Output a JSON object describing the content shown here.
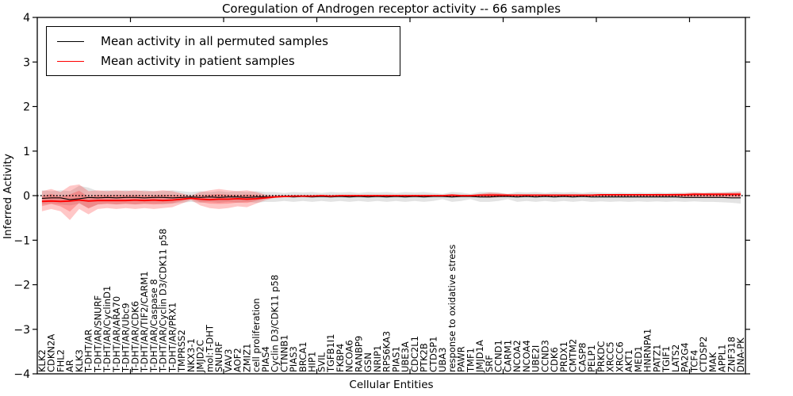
{
  "figure": {
    "title": "Coregulation of Androgen receptor activity -- 66 samples",
    "xlabel": "Cellular Entities",
    "ylabel": "Inferred Activity"
  },
  "legend": {
    "items": [
      {
        "label": "Mean activity in all permuted samples",
        "color": "#000000"
      },
      {
        "label": "Mean activity in patient samples",
        "color": "#ff0000"
      }
    ]
  },
  "chart_data": {
    "type": "line",
    "title": "Coregulation of Androgen receptor activity -- 66 samples",
    "xlabel": "Cellular Entities",
    "ylabel": "Inferred Activity",
    "ylim": [
      -4,
      4
    ],
    "yticks": [
      -4,
      -3,
      -2,
      -1,
      0,
      1,
      2,
      3,
      4
    ],
    "ytick_labels": [
      "−4",
      "−3",
      "−2",
      "−1",
      "0",
      "1",
      "2",
      "3",
      "4"
    ],
    "xticks_major": [
      10,
      20,
      30,
      40,
      50,
      60,
      70
    ],
    "grid": false,
    "legend_position": "upper left",
    "reference_line": {
      "name": "zero-reference-line",
      "value": 0,
      "style": "dotted",
      "color": "#000000"
    },
    "categories": [
      "KLK2",
      "CDKN2A",
      "FHL2",
      "AR",
      "KLK3",
      "T-DHT/AR",
      "T-DHT/AR/SNURF",
      "T-DHT/AR/CyclinD1",
      "T-DHT/AR/ARA70",
      "T-DHT/AR/Ubc9",
      "T-DHT/AR/CDK6",
      "T-DHT/AR/TIF2/CARM1",
      "T-DHT/AR/Caspase 8",
      "T-DHT/AR/Cyclin D3/CDK11 p58",
      "T-DHT/AR/PRX1",
      "TMPRSS2",
      "NKX3-1",
      "JMJD2C",
      "mol:T-DHT",
      "SNURF",
      "VAV3",
      "AOF2",
      "ZMIZ1",
      "cell proliferation",
      "PIAS4",
      "Cyclin D3/CDK11 p58",
      "CTNNB1",
      "PIAS3",
      "BRCA1",
      "HIP1",
      "SVIL",
      "TGFB1I1",
      "FKBP4",
      "NCOA6",
      "RANBP9",
      "GSN",
      "NRIP1",
      "RPS6KA3",
      "PIAS1",
      "UBE3A",
      "CDC2L1",
      "PTK2B",
      "CTDSP1",
      "UBA3",
      "response to oxidative stress",
      "PAWR",
      "TMF1",
      "JMJD1A",
      "SRF",
      "CCND1",
      "CARM1",
      "NCOA2",
      "NCOA4",
      "UBE2I",
      "CCND3",
      "CDK6",
      "PRDX1",
      "CMTM2",
      "CASP8",
      "PELP1",
      "PRKDC",
      "XRCC5",
      "XRCC6",
      "AKT1",
      "MED1",
      "HNRNPA1",
      "PATZ1",
      "TGIF1",
      "LATS2",
      "PA2G4",
      "TCF4",
      "CTDSP2",
      "MAK",
      "APPL1",
      "ZNF318",
      "DNA-PK"
    ],
    "series": [
      {
        "name": "Mean activity in all permuted samples",
        "color": "#000000",
        "width": 1.1,
        "values": [
          -0.06,
          -0.05,
          -0.05,
          -0.09,
          -0.07,
          -0.04,
          -0.05,
          -0.04,
          -0.05,
          -0.04,
          -0.04,
          -0.05,
          -0.04,
          -0.04,
          -0.05,
          -0.04,
          -0.03,
          -0.04,
          -0.03,
          -0.04,
          -0.03,
          -0.03,
          -0.04,
          -0.03,
          -0.03,
          -0.03,
          -0.02,
          -0.03,
          -0.02,
          -0.03,
          -0.02,
          -0.03,
          -0.02,
          -0.03,
          -0.02,
          -0.03,
          -0.02,
          -0.03,
          -0.02,
          -0.03,
          -0.02,
          -0.03,
          -0.02,
          -0.02,
          -0.03,
          -0.02,
          -0.02,
          -0.03,
          -0.03,
          -0.02,
          -0.02,
          -0.03,
          -0.02,
          -0.03,
          -0.02,
          -0.03,
          -0.02,
          -0.03,
          -0.02,
          -0.03,
          -0.03,
          -0.03,
          -0.03,
          -0.03,
          -0.03,
          -0.03,
          -0.03,
          -0.03,
          -0.03,
          -0.04,
          -0.04,
          -0.04,
          -0.04,
          -0.04,
          -0.05,
          -0.05
        ]
      },
      {
        "name": "Mean activity in patient samples",
        "color": "#ff0000",
        "width": 1.8,
        "values": [
          -0.13,
          -0.12,
          -0.13,
          -0.12,
          -0.1,
          -0.12,
          -0.11,
          -0.11,
          -0.11,
          -0.11,
          -0.1,
          -0.11,
          -0.1,
          -0.11,
          -0.1,
          -0.08,
          -0.06,
          -0.08,
          -0.09,
          -0.08,
          -0.08,
          -0.07,
          -0.08,
          -0.07,
          -0.05,
          -0.03,
          -0.02,
          -0.01,
          -0.01,
          -0.01,
          0.0,
          -0.01,
          0.0,
          0.0,
          0.0,
          0.0,
          0.0,
          0.0,
          0.0,
          0.0,
          0.0,
          0.0,
          0.0,
          0.0,
          0.01,
          0.0,
          0.0,
          0.01,
          0.01,
          0.01,
          0.01,
          0.01,
          0.01,
          0.01,
          0.01,
          0.01,
          0.01,
          0.01,
          0.01,
          0.01,
          0.02,
          0.02,
          0.02,
          0.02,
          0.02,
          0.02,
          0.02,
          0.02,
          0.02,
          0.02,
          0.03,
          0.03,
          0.03,
          0.03,
          0.03,
          0.03
        ]
      }
    ],
    "bands": [
      {
        "name": "permuted-samples-band",
        "color": "rgba(0,0,0,0.11)",
        "core": false,
        "upper": [
          0.12,
          0.1,
          0.12,
          0.1,
          0.22,
          0.18,
          0.1,
          0.12,
          0.1,
          0.12,
          0.1,
          0.12,
          0.1,
          0.1,
          0.12,
          0.1,
          0.08,
          0.1,
          0.08,
          0.1,
          0.08,
          0.1,
          0.08,
          0.1,
          0.08,
          0.08,
          0.06,
          0.08,
          0.07,
          0.08,
          0.06,
          0.08,
          0.07,
          0.08,
          0.06,
          0.08,
          0.07,
          0.08,
          0.06,
          0.08,
          0.07,
          0.08,
          0.06,
          0.04,
          0.08,
          0.07,
          0.04,
          0.08,
          0.08,
          0.07,
          0.04,
          0.08,
          0.07,
          0.08,
          0.06,
          0.08,
          0.07,
          0.08,
          0.06,
          0.08,
          0.07,
          0.06,
          0.07,
          0.06,
          0.07,
          0.06,
          0.07,
          0.06,
          0.07,
          0.06,
          0.07,
          0.06,
          0.08,
          0.07,
          0.09,
          0.1
        ],
        "lower": [
          -0.2,
          -0.18,
          -0.2,
          -0.22,
          -0.18,
          -0.28,
          -0.2,
          -0.18,
          -0.2,
          -0.18,
          -0.2,
          -0.18,
          -0.18,
          -0.2,
          -0.18,
          -0.16,
          -0.14,
          -0.16,
          -0.14,
          -0.16,
          -0.14,
          -0.16,
          -0.14,
          -0.16,
          -0.14,
          -0.14,
          -0.12,
          -0.14,
          -0.12,
          -0.14,
          -0.12,
          -0.14,
          -0.12,
          -0.14,
          -0.12,
          -0.14,
          -0.12,
          -0.14,
          -0.12,
          -0.14,
          -0.12,
          -0.14,
          -0.12,
          -0.08,
          -0.14,
          -0.12,
          -0.08,
          -0.14,
          -0.14,
          -0.12,
          -0.08,
          -0.14,
          -0.12,
          -0.14,
          -0.12,
          -0.14,
          -0.12,
          -0.14,
          -0.12,
          -0.14,
          -0.13,
          -0.14,
          -0.13,
          -0.14,
          -0.13,
          -0.14,
          -0.13,
          -0.14,
          -0.13,
          -0.14,
          -0.13,
          -0.14,
          -0.14,
          -0.15,
          -0.16,
          -0.18
        ]
      },
      {
        "name": "patient-samples-band",
        "color": "rgba(255,0,0,0.22)",
        "core": true,
        "upper": [
          0.1,
          0.15,
          0.08,
          0.22,
          0.25,
          0.1,
          0.12,
          0.1,
          0.12,
          0.1,
          0.12,
          0.1,
          0.1,
          0.12,
          0.1,
          0.05,
          0.0,
          0.08,
          0.12,
          0.15,
          0.12,
          0.1,
          0.12,
          0.08,
          0.02,
          0.01,
          0.01,
          0.01,
          0.01,
          0.01,
          0.01,
          0.01,
          0.01,
          0.01,
          0.01,
          0.01,
          0.01,
          0.01,
          0.01,
          0.01,
          0.01,
          0.01,
          0.01,
          0.01,
          0.03,
          0.02,
          0.02,
          0.04,
          0.07,
          0.06,
          0.03,
          0.02,
          0.02,
          0.02,
          0.02,
          0.02,
          0.02,
          0.02,
          0.02,
          0.02,
          0.03,
          0.03,
          0.03,
          0.03,
          0.03,
          0.03,
          0.04,
          0.04,
          0.05,
          0.06,
          0.07,
          0.06,
          0.06,
          0.07,
          0.07,
          0.08
        ],
        "lower": [
          -0.35,
          -0.3,
          -0.35,
          -0.55,
          -0.3,
          -0.42,
          -0.3,
          -0.28,
          -0.3,
          -0.28,
          -0.3,
          -0.28,
          -0.3,
          -0.28,
          -0.26,
          -0.18,
          -0.1,
          -0.22,
          -0.28,
          -0.3,
          -0.28,
          -0.24,
          -0.26,
          -0.18,
          -0.1,
          -0.05,
          -0.03,
          -0.02,
          -0.02,
          -0.02,
          -0.02,
          -0.02,
          -0.02,
          -0.02,
          -0.02,
          -0.02,
          -0.02,
          -0.02,
          -0.02,
          -0.02,
          -0.02,
          -0.02,
          -0.02,
          -0.02,
          -0.04,
          -0.03,
          -0.03,
          -0.04,
          -0.05,
          -0.04,
          -0.03,
          -0.02,
          -0.02,
          -0.02,
          -0.02,
          -0.02,
          -0.02,
          -0.02,
          -0.02,
          -0.02,
          -0.02,
          -0.02,
          -0.02,
          -0.02,
          -0.02,
          -0.02,
          -0.03,
          -0.03,
          -0.03,
          -0.04,
          -0.04,
          -0.03,
          -0.04,
          -0.04,
          -0.04,
          -0.05
        ]
      }
    ]
  }
}
